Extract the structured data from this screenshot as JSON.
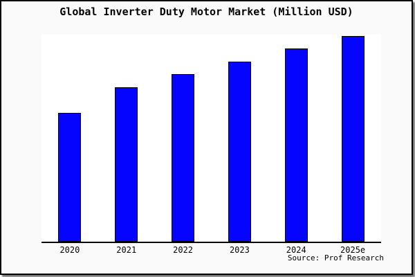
{
  "title": "Global Inverter Duty Motor Market (Million USD)",
  "source_note": "Source: Prof Research",
  "colors": {
    "frame_background": "#fafafa",
    "plot_background": "#ffffff",
    "bar_fill": "#0404ff",
    "bar_edge": "#000000",
    "axis": "#000000",
    "text": "#000000"
  },
  "chart_data": {
    "type": "bar",
    "title": "Global Inverter Duty Motor Market (Million USD)",
    "categories": [
      "2020",
      "2021",
      "2022",
      "2023",
      "2024",
      "2025e"
    ],
    "values": [
      187,
      224,
      243,
      261,
      280,
      298
    ],
    "xlabel": "",
    "ylabel": "",
    "ylim": [
      0,
      300
    ],
    "grid": false,
    "legend": null,
    "y_axis_visible": false,
    "value_units": "relative (no y-axis scale shown in source image)",
    "annotation": "Source: Prof Research"
  }
}
